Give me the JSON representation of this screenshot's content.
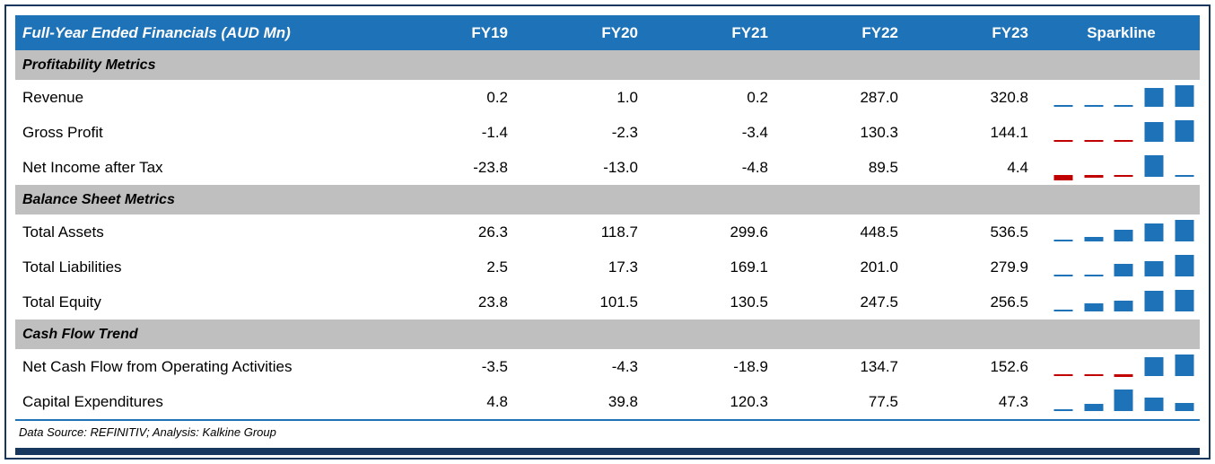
{
  "colors": {
    "header_blue": "#1E73B8",
    "bar_blue": "#1E73B8",
    "negative_red": "#C00000",
    "section_gray": "#BFBFBF",
    "navy": "#17375E"
  },
  "chart_data": {
    "type": "table",
    "title": "Full-Year Ended Financials (AUD Mn)",
    "columns": [
      "FY19",
      "FY20",
      "FY21",
      "FY22",
      "FY23"
    ],
    "sparkline_column": "Sparkline",
    "sparkline_type": "bar",
    "sections": [
      {
        "label": "Profitability Metrics",
        "rows": [
          {
            "label": "Revenue",
            "values": [
              0.2,
              1.0,
              0.2,
              287.0,
              320.8
            ]
          },
          {
            "label": "Gross Profit",
            "values": [
              -1.4,
              -2.3,
              -3.4,
              130.3,
              144.1
            ]
          },
          {
            "label": "Net Income after Tax",
            "values": [
              -23.8,
              -13.0,
              -4.8,
              89.5,
              4.4
            ]
          }
        ]
      },
      {
        "label": "Balance Sheet Metrics",
        "rows": [
          {
            "label": "Total Assets",
            "values": [
              26.3,
              118.7,
              299.6,
              448.5,
              536.5
            ]
          },
          {
            "label": "Total Liabilities",
            "values": [
              2.5,
              17.3,
              169.1,
              201.0,
              279.9
            ]
          },
          {
            "label": "Total Equity",
            "values": [
              23.8,
              101.5,
              130.5,
              247.5,
              256.5
            ]
          }
        ]
      },
      {
        "label": "Cash Flow Trend",
        "rows": [
          {
            "label": "Net Cash Flow from Operating Activities",
            "values": [
              -3.5,
              -4.3,
              -18.9,
              134.7,
              152.6
            ]
          },
          {
            "label": "Capital Expenditures",
            "values": [
              4.8,
              39.8,
              120.3,
              77.5,
              47.3
            ]
          }
        ]
      }
    ]
  },
  "footer": {
    "text": "Data Source: REFINITIV; Analysis: Kalkine Group"
  }
}
